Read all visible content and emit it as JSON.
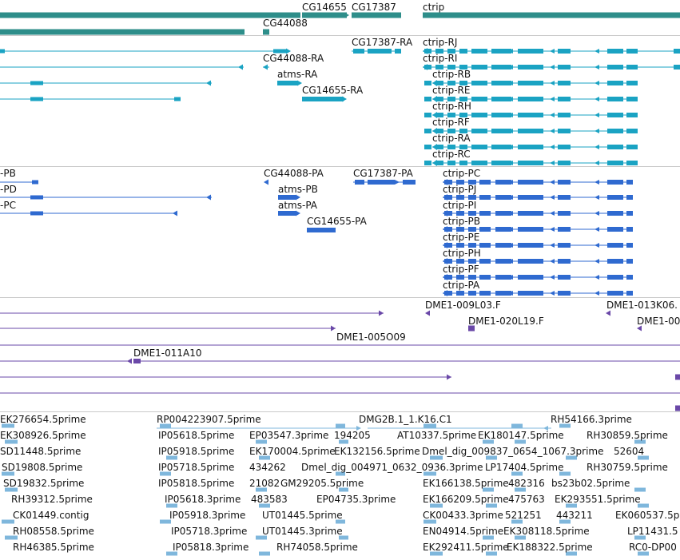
{
  "colors": {
    "gene": "#2e8e8a",
    "mrna": "#1aa3c3",
    "protein": "#2f6ad0",
    "clone": "#6a48a8",
    "est": "#7fb7dc",
    "divider": "#c9c9c9"
  },
  "tracks": {
    "genes": {
      "labels": [
        "CG14655",
        "CG17387",
        "ctrip",
        "CG44088"
      ]
    },
    "transcripts": {
      "labels": [
        "CG17387-RA",
        "ctrip-RJ",
        "CG44088-RA",
        "ctrip-RI",
        "atms-RA",
        "ctrip-RB",
        "CG14655-RA",
        "ctrip-RE",
        "ctrip-RH",
        "ctrip-RF",
        "ctrip-RA",
        "ctrip-RC"
      ]
    },
    "proteins": {
      "labels": [
        "-PB",
        "CG44088-PA",
        "CG17387-PA",
        "ctrip-PC",
        "-PD",
        "atms-PB",
        "ctrip-PJ",
        "-PC",
        "atms-PA",
        "ctrip-PI",
        "CG14655-PA",
        "ctrip-PB",
        "ctrip-PE",
        "ctrip-PH",
        "ctrip-PF",
        "ctrip-PA"
      ]
    },
    "clones": {
      "labels": [
        "DME1-009L03.F",
        "DME1-013K06.",
        "DME1-020L19.F",
        "DME1-00",
        "DME1-005O09",
        "DME1-011A10"
      ]
    },
    "ests": {
      "labels": [
        "EK276654.5prime",
        "RP004223907.5prime",
        "DMG2B.1_1.K16.C1",
        "RH54166.3prime",
        "EK308926.5prime",
        "IP05618.5prime",
        "EP03547.3prime",
        "194205",
        "AT10337.5prime",
        "EK180147.5prime",
        "RH30859.5prime",
        "SD11448.5prime",
        "IP05918.5prime",
        "EK170004.5prime",
        "EK132156.5prime",
        "Dmel_dig_009837_0654_1067.3prime",
        "52604",
        "SD19808.5prime",
        "IP05718.5prime",
        "434262",
        "Dmel_dig_004971_0632_0936.3prime",
        "LP17404.5prime",
        "RH30759.5prime",
        "SD19832.5prime",
        "IP05818.5prime",
        "21082",
        "GM29205.5prime",
        "EK166138.5prime",
        "482316",
        "bs23b02.5prime",
        "RH39312.5prime",
        "IP05618.3prime",
        "483583",
        "EP04735.3prime",
        "EK166209.5prime",
        "475763",
        "EK293551.5prime",
        "CK01449.contig",
        "IP05918.3prime",
        "UT01445.5prime",
        "CK00433.3prime",
        "521251",
        "443211",
        "EK060537.5p",
        "RH08558.5prime",
        "IP05718.3prime",
        "UT01445.3prime",
        "EN04914.5prime",
        "EK308118.5prime",
        "LP11431.5",
        "RH46385.5prime",
        "IP05818.3prime",
        "RH74058.5prime",
        "EK292411.5prime",
        "EK188322.5prime",
        "RC0-DP00"
      ]
    }
  }
}
